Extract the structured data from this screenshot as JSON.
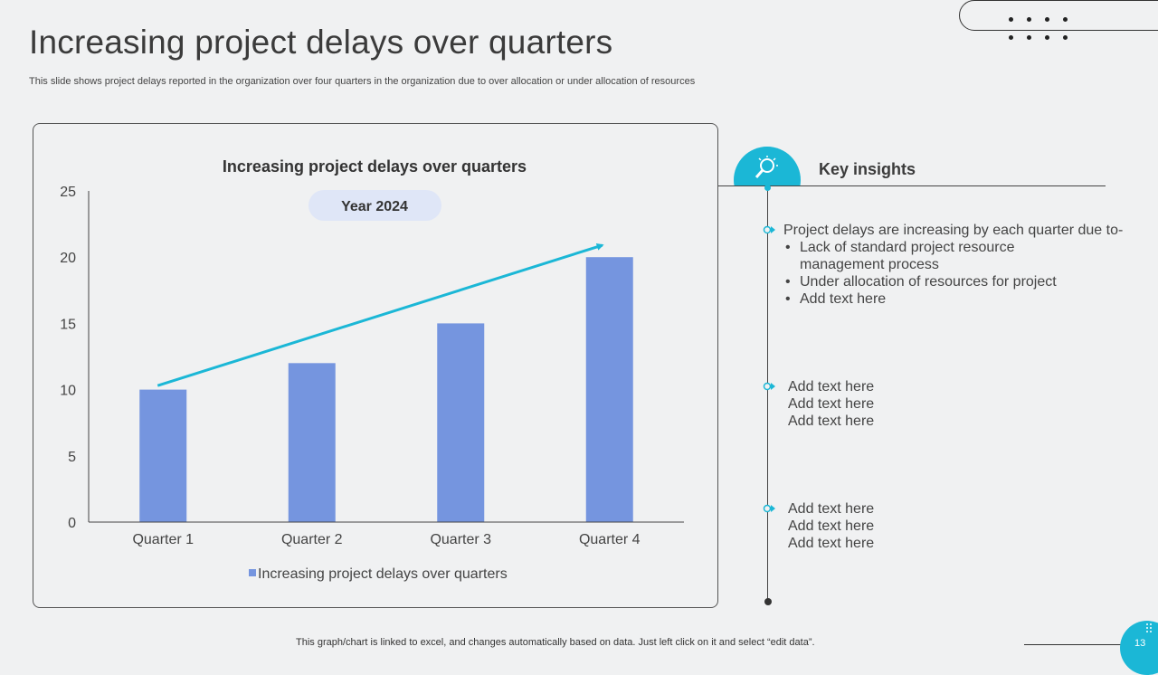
{
  "slide": {
    "title": "Increasing project delays over quarters",
    "subtitle": "This slide shows project delays reported in the organization over four quarters in the organization due to over allocation or under allocation of resources",
    "footer": "This graph/chart is linked to excel, and changes automatically based on data. Just left click on it and select “edit data”.",
    "page_number": "13"
  },
  "colors": {
    "accent": "#1bb7d6",
    "bar": "#7595df",
    "badge_bg": "#dfe6f7",
    "background": "#f0f1f2"
  },
  "chart_data": {
    "type": "bar",
    "title": "Increasing project delays over quarters",
    "badge": "Year 2024",
    "categories": [
      "Quarter 1",
      "Quarter 2",
      "Quarter 3",
      "Quarter 4"
    ],
    "series": [
      {
        "name": "Increasing project delays over quarters",
        "values": [
          10,
          12,
          15,
          20
        ]
      }
    ],
    "ylim": [
      0,
      25
    ],
    "yticks": [
      0,
      5,
      10,
      15,
      20,
      25
    ],
    "legend": "bottom-center",
    "grid": false,
    "trend_arrow": {
      "from_value": 10.3,
      "to_value": 20.9,
      "direction": "increasing"
    }
  },
  "insights": {
    "heading": "Key insights",
    "icon": "lightbulb-search-icon",
    "blocks": [
      {
        "lead": "Project delays are increasing by each quarter due to-",
        "bullets": [
          "Lack of standard project resource management process",
          "Under allocation of resources for project",
          "Add text here"
        ]
      },
      {
        "lines": [
          "Add text here",
          "Add text here",
          "Add text here"
        ]
      },
      {
        "lines": [
          "Add text here",
          "Add text here",
          "Add text here"
        ]
      }
    ]
  }
}
